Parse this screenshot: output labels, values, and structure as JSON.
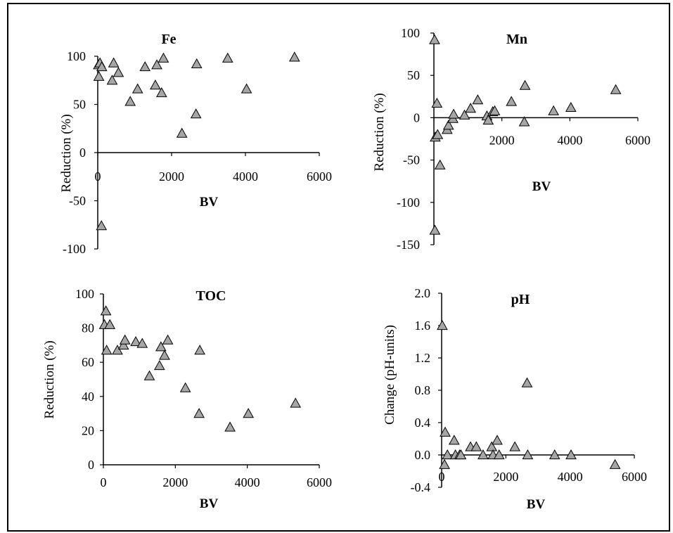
{
  "chart_data": [
    {
      "type": "scatter",
      "title": "Fe",
      "xlabel": "BV",
      "ylabel": "Reduction (%)",
      "xlim": [
        0,
        6000
      ],
      "ylim": [
        -100,
        100
      ],
      "xticks": [
        "0",
        "2000",
        "4000",
        "6000"
      ],
      "yticks": [
        "-100",
        "-50",
        "0",
        "50",
        "100"
      ],
      "marker_color": "#a6a6a6",
      "points": [
        {
          "x": 20,
          "y": 91
        },
        {
          "x": 30,
          "y": 79
        },
        {
          "x": 60,
          "y": 93
        },
        {
          "x": 100,
          "y": -76
        },
        {
          "x": 110,
          "y": 89
        },
        {
          "x": 390,
          "y": 75
        },
        {
          "x": 430,
          "y": 93
        },
        {
          "x": 560,
          "y": 83
        },
        {
          "x": 880,
          "y": 53
        },
        {
          "x": 1080,
          "y": 66
        },
        {
          "x": 1280,
          "y": 89
        },
        {
          "x": 1560,
          "y": 70
        },
        {
          "x": 1600,
          "y": 91
        },
        {
          "x": 1730,
          "y": 62
        },
        {
          "x": 1780,
          "y": 98
        },
        {
          "x": 2280,
          "y": 20
        },
        {
          "x": 2660,
          "y": 40
        },
        {
          "x": 2680,
          "y": 92
        },
        {
          "x": 3520,
          "y": 98
        },
        {
          "x": 4030,
          "y": 66
        },
        {
          "x": 5330,
          "y": 99
        }
      ]
    },
    {
      "type": "scatter",
      "title": "Mn",
      "xlabel": "BV",
      "ylabel": "Reduction (%)",
      "xlim": [
        0,
        6000
      ],
      "ylim": [
        -150,
        100
      ],
      "xticks": [
        "2000",
        "4000",
        "6000"
      ],
      "yticks": [
        "-150",
        "-100",
        "-50",
        "0",
        "50",
        "100"
      ],
      "marker_color": "#a6a6a6",
      "points": [
        {
          "x": 20,
          "y": 92
        },
        {
          "x": 30,
          "y": -133
        },
        {
          "x": 40,
          "y": -23
        },
        {
          "x": 90,
          "y": 17
        },
        {
          "x": 110,
          "y": -20
        },
        {
          "x": 180,
          "y": -56
        },
        {
          "x": 390,
          "y": -14
        },
        {
          "x": 430,
          "y": -9
        },
        {
          "x": 560,
          "y": -1
        },
        {
          "x": 580,
          "y": 4
        },
        {
          "x": 900,
          "y": 3
        },
        {
          "x": 1080,
          "y": 11
        },
        {
          "x": 1290,
          "y": 21
        },
        {
          "x": 1560,
          "y": 2
        },
        {
          "x": 1600,
          "y": -3
        },
        {
          "x": 1730,
          "y": 7
        },
        {
          "x": 1790,
          "y": 8
        },
        {
          "x": 2280,
          "y": 19
        },
        {
          "x": 2660,
          "y": -5
        },
        {
          "x": 2680,
          "y": 38
        },
        {
          "x": 3520,
          "y": 8
        },
        {
          "x": 4030,
          "y": 12
        },
        {
          "x": 5350,
          "y": 33
        }
      ]
    },
    {
      "type": "scatter",
      "title": "TOC",
      "xlabel": "BV",
      "ylabel": "Reduction (%)",
      "xlim": [
        0,
        6000
      ],
      "ylim": [
        0,
        100
      ],
      "xticks": [
        "0",
        "2000",
        "4000",
        "6000"
      ],
      "yticks": [
        "0",
        "20",
        "40",
        "60",
        "80",
        "100"
      ],
      "marker_color": "#a6a6a6",
      "points": [
        {
          "x": 30,
          "y": 82
        },
        {
          "x": 70,
          "y": 90
        },
        {
          "x": 90,
          "y": 67
        },
        {
          "x": 180,
          "y": 82
        },
        {
          "x": 390,
          "y": 67
        },
        {
          "x": 560,
          "y": 70
        },
        {
          "x": 600,
          "y": 73
        },
        {
          "x": 900,
          "y": 72
        },
        {
          "x": 1080,
          "y": 71
        },
        {
          "x": 1280,
          "y": 52
        },
        {
          "x": 1560,
          "y": 58
        },
        {
          "x": 1600,
          "y": 69
        },
        {
          "x": 1700,
          "y": 64
        },
        {
          "x": 1790,
          "y": 73
        },
        {
          "x": 2280,
          "y": 45
        },
        {
          "x": 2660,
          "y": 30
        },
        {
          "x": 2680,
          "y": 67
        },
        {
          "x": 3520,
          "y": 22
        },
        {
          "x": 4030,
          "y": 30
        },
        {
          "x": 5340,
          "y": 36
        }
      ]
    },
    {
      "type": "scatter",
      "title": "pH",
      "xlabel": "BV",
      "ylabel": "Change (pH-units)",
      "xlim": [
        0,
        6000
      ],
      "ylim": [
        -0.4,
        2.0
      ],
      "xticks": [
        "0",
        "2000",
        "4000",
        "6000"
      ],
      "yticks": [
        "-0.4",
        "0.0",
        "0.4",
        "0.8",
        "1.2",
        "1.6",
        "2.0"
      ],
      "marker_color": "#a6a6a6",
      "points": [
        {
          "x": 20,
          "y": 1.6
        },
        {
          "x": 90,
          "y": -0.12
        },
        {
          "x": 110,
          "y": 0.28
        },
        {
          "x": 180,
          "y": 0.0
        },
        {
          "x": 390,
          "y": 0.18
        },
        {
          "x": 430,
          "y": 0.0
        },
        {
          "x": 560,
          "y": 0.0
        },
        {
          "x": 600,
          "y": 0.0
        },
        {
          "x": 900,
          "y": 0.1
        },
        {
          "x": 1080,
          "y": 0.1
        },
        {
          "x": 1290,
          "y": 0.0
        },
        {
          "x": 1560,
          "y": 0.1
        },
        {
          "x": 1600,
          "y": 0.0
        },
        {
          "x": 1730,
          "y": 0.18
        },
        {
          "x": 1790,
          "y": 0.0
        },
        {
          "x": 2280,
          "y": 0.1
        },
        {
          "x": 2660,
          "y": 0.89
        },
        {
          "x": 2680,
          "y": 0.0
        },
        {
          "x": 3520,
          "y": 0.0
        },
        {
          "x": 4030,
          "y": 0.0
        },
        {
          "x": 5400,
          "y": -0.12
        }
      ]
    }
  ]
}
